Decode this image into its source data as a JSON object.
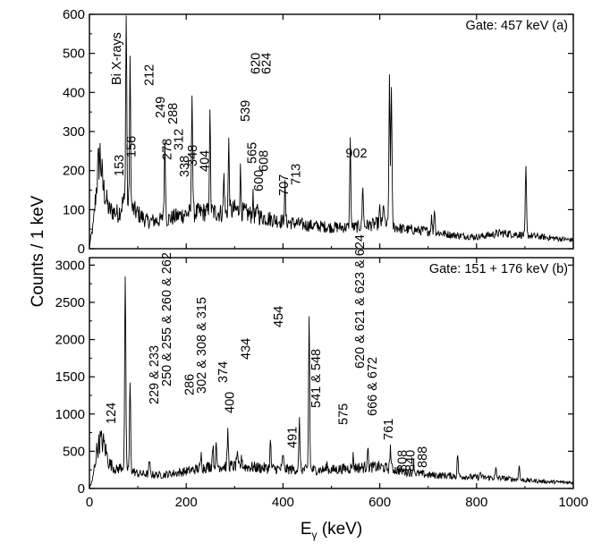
{
  "chart_data": {
    "type": "line",
    "ylabel": "Counts / 1 keV",
    "xlabel_main": "E",
    "xlabel_sub": "γ",
    "xlabel_unit": " (keV)",
    "xlim": [
      0,
      1000
    ],
    "xticks": [
      "0",
      "200",
      "400",
      "600",
      "800",
      "1000"
    ],
    "grid": false,
    "legend": "none",
    "line_color": "#000000",
    "panels": [
      {
        "id": "a",
        "gate_label": "Gate: 457 keV  (a)",
        "ylim": [
          0,
          600
        ],
        "yticks": [
          0,
          100,
          200,
          300,
          400,
          500,
          600
        ],
        "baseline": [
          [
            0,
            8
          ],
          [
            8,
            60
          ],
          [
            18,
            210
          ],
          [
            22,
            240
          ],
          [
            28,
            160
          ],
          [
            40,
            100
          ],
          [
            60,
            90
          ],
          [
            70,
            120
          ],
          [
            90,
            100
          ],
          [
            120,
            70
          ],
          [
            160,
            75
          ],
          [
            200,
            90
          ],
          [
            250,
            95
          ],
          [
            280,
            90
          ],
          [
            300,
            100
          ],
          [
            340,
            85
          ],
          [
            400,
            70
          ],
          [
            450,
            60
          ],
          [
            500,
            55
          ],
          [
            550,
            55
          ],
          [
            600,
            65
          ],
          [
            650,
            50
          ],
          [
            700,
            45
          ],
          [
            750,
            35
          ],
          [
            800,
            30
          ],
          [
            850,
            40
          ],
          [
            900,
            35
          ],
          [
            950,
            28
          ],
          [
            1000,
            22
          ]
        ],
        "peaks": [
          {
            "x": 76,
            "y": 600
          },
          {
            "x": 84,
            "y": 470
          },
          {
            "x": 153,
            "y": 100
          },
          {
            "x": 156,
            "y": 280
          },
          {
            "x": 212,
            "y": 415
          },
          {
            "x": 249,
            "y": 335
          },
          {
            "x": 278,
            "y": 190
          },
          {
            "x": 288,
            "y": 270
          },
          {
            "x": 312,
            "y": 200
          },
          {
            "x": 338,
            "y": 130
          },
          {
            "x": 348,
            "y": 110
          },
          {
            "x": 404,
            "y": 160
          },
          {
            "x": 539,
            "y": 280
          },
          {
            "x": 565,
            "y": 165
          },
          {
            "x": 600,
            "y": 100
          },
          {
            "x": 608,
            "y": 120
          },
          {
            "x": 620,
            "y": 430
          },
          {
            "x": 624,
            "y": 425
          },
          {
            "x": 707,
            "y": 80
          },
          {
            "x": 713,
            "y": 105
          },
          {
            "x": 902,
            "y": 210
          }
        ],
        "labels": [
          "Bi X-rays",
          "153",
          "156",
          "212",
          "249",
          "278",
          "288",
          "312",
          "338",
          "348",
          "404",
          "539",
          "565",
          "600",
          "608",
          "620",
          "624",
          "707",
          "713",
          "902"
        ]
      },
      {
        "id": "b",
        "gate_label": "Gate: 151 + 176 keV  (b)",
        "ylim": [
          0,
          3100
        ],
        "yticks": [
          0,
          500,
          1000,
          1500,
          2000,
          2500,
          3000
        ],
        "baseline": [
          [
            0,
            10
          ],
          [
            6,
            100
          ],
          [
            15,
            500
          ],
          [
            22,
            650
          ],
          [
            30,
            600
          ],
          [
            40,
            350
          ],
          [
            55,
            250
          ],
          [
            70,
            300
          ],
          [
            100,
            200
          ],
          [
            150,
            180
          ],
          [
            200,
            230
          ],
          [
            250,
            300
          ],
          [
            300,
            300
          ],
          [
            350,
            280
          ],
          [
            400,
            260
          ],
          [
            450,
            250
          ],
          [
            500,
            250
          ],
          [
            550,
            280
          ],
          [
            600,
            290
          ],
          [
            650,
            230
          ],
          [
            700,
            180
          ],
          [
            750,
            170
          ],
          [
            800,
            150
          ],
          [
            850,
            140
          ],
          [
            900,
            110
          ],
          [
            950,
            90
          ],
          [
            1000,
            80
          ]
        ],
        "peaks": [
          {
            "x": 74,
            "y": 2880
          },
          {
            "x": 84,
            "y": 1420
          },
          {
            "x": 124,
            "y": 370
          },
          {
            "x": 231,
            "y": 450
          },
          {
            "x": 255,
            "y": 600
          },
          {
            "x": 262,
            "y": 560
          },
          {
            "x": 286,
            "y": 760
          },
          {
            "x": 305,
            "y": 480
          },
          {
            "x": 315,
            "y": 420
          },
          {
            "x": 374,
            "y": 630
          },
          {
            "x": 400,
            "y": 470
          },
          {
            "x": 434,
            "y": 920
          },
          {
            "x": 454,
            "y": 2320
          },
          {
            "x": 491,
            "y": 330
          },
          {
            "x": 545,
            "y": 430
          },
          {
            "x": 575,
            "y": 560
          },
          {
            "x": 622,
            "y": 560
          },
          {
            "x": 670,
            "y": 360
          },
          {
            "x": 761,
            "y": 470
          },
          {
            "x": 808,
            "y": 220
          },
          {
            "x": 840,
            "y": 260
          },
          {
            "x": 888,
            "y": 330
          }
        ],
        "labels": [
          "124",
          "229 & 233",
          "250 & 255 & 260 & 262",
          "286",
          "302 & 308 & 315",
          "374",
          "400",
          "434",
          "454",
          "491",
          "541 & 548",
          "575",
          "620 & 621 & 623 & 624",
          "666 & 672",
          "761",
          "808",
          "840",
          "888"
        ]
      }
    ]
  }
}
